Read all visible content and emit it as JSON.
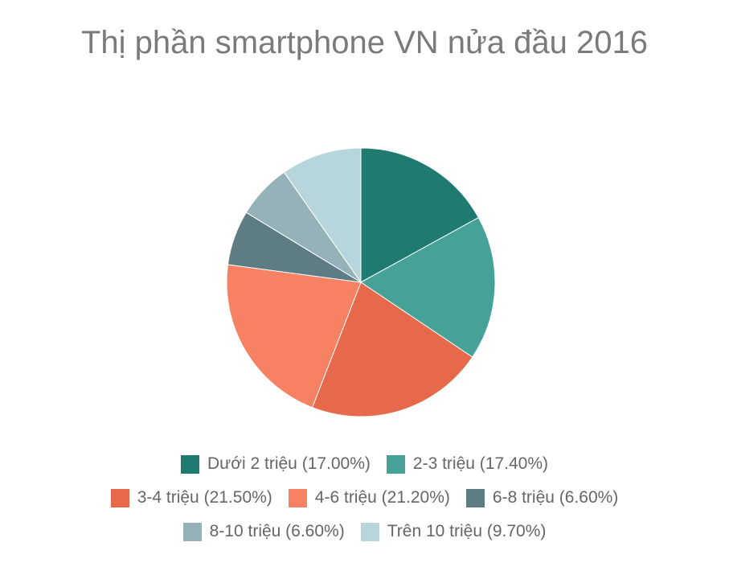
{
  "chart_data": {
    "type": "pie",
    "title": "Thị phần smartphone VN nửa đầu 2016",
    "categories": [
      "Dưới 2 triệu",
      "2-3 triệu",
      "3-4 triệu",
      "4-6 triệu",
      "6-8 triệu",
      "8-10 triệu",
      "Trên 10 triệu"
    ],
    "values": [
      17.0,
      17.4,
      21.5,
      21.2,
      6.6,
      6.6,
      9.7
    ],
    "labels": [
      "Dưới 2 triệu (17.00%)",
      "2-3 triệu (17.40%)",
      "3-4 triệu (21.50%)",
      "4-6 triệu (21.20%)",
      "6-8 triệu (6.60%)",
      "8-10 triệu (6.60%)",
      "Trên 10 triệu (9.70%)"
    ],
    "colors": [
      "#1f7b70",
      "#46a196",
      "#e5694a",
      "#f78163",
      "#5d7c83",
      "#94b2b8",
      "#b6d6dc"
    ],
    "legend_position": "bottom"
  }
}
